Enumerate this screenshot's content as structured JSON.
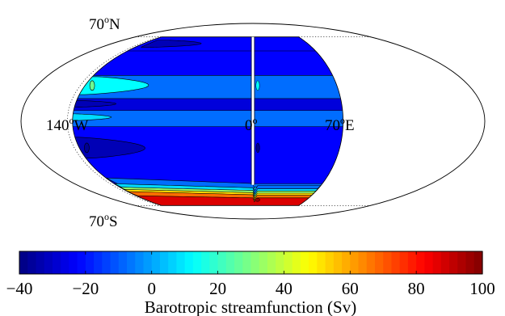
{
  "chart_data": {
    "type": "heatmap",
    "projection": "mollweide",
    "title": "",
    "map_labels": [
      {
        "text": "70",
        "sup": "o",
        "suffix": "N"
      },
      {
        "text": "140",
        "sup": "o",
        "suffix": "W"
      },
      {
        "text": "0",
        "sup": "o",
        "suffix": ""
      },
      {
        "text": "70",
        "sup": "o",
        "suffix": "E"
      },
      {
        "text": "70",
        "sup": "o",
        "suffix": "S"
      }
    ],
    "domain": {
      "lon_min": -140,
      "lon_max": 70,
      "lat_min": -70,
      "lat_max": 70
    },
    "zonal_bands_sv": [
      {
        "lat_top": 70,
        "lat_bottom": 56,
        "value": -25
      },
      {
        "lat_top": 56,
        "lat_bottom": 35,
        "value": -22
      },
      {
        "lat_top": 35,
        "lat_bottom": 17,
        "value": -8
      },
      {
        "lat_top": 17,
        "lat_bottom": 8,
        "value": -28
      },
      {
        "lat_top": 8,
        "lat_bottom": -4,
        "value": -8
      },
      {
        "lat_top": -4,
        "lat_bottom": -49,
        "value": -22
      },
      {
        "lat_top": -49,
        "lat_bottom": -52,
        "value": -8
      },
      {
        "lat_top": -52,
        "lat_bottom": -55,
        "value": 5
      },
      {
        "lat_top": -55,
        "lat_bottom": -57,
        "value": 30
      },
      {
        "lat_top": -57,
        "lat_bottom": -59,
        "value": 50
      },
      {
        "lat_top": -59,
        "lat_bottom": -61,
        "value": 65
      },
      {
        "lat_top": -61,
        "lat_bottom": -70,
        "value": 85
      }
    ],
    "colorbar": {
      "label": "Barotropic streamfunction (Sv)",
      "min": -40,
      "max": 100,
      "ticks": [
        -40,
        -20,
        0,
        20,
        40,
        60,
        80,
        100
      ],
      "tick_labels": [
        "−40",
        "−20",
        "0",
        "20",
        "40",
        "60",
        "80",
        "100"
      ],
      "colormap": "jet"
    }
  }
}
